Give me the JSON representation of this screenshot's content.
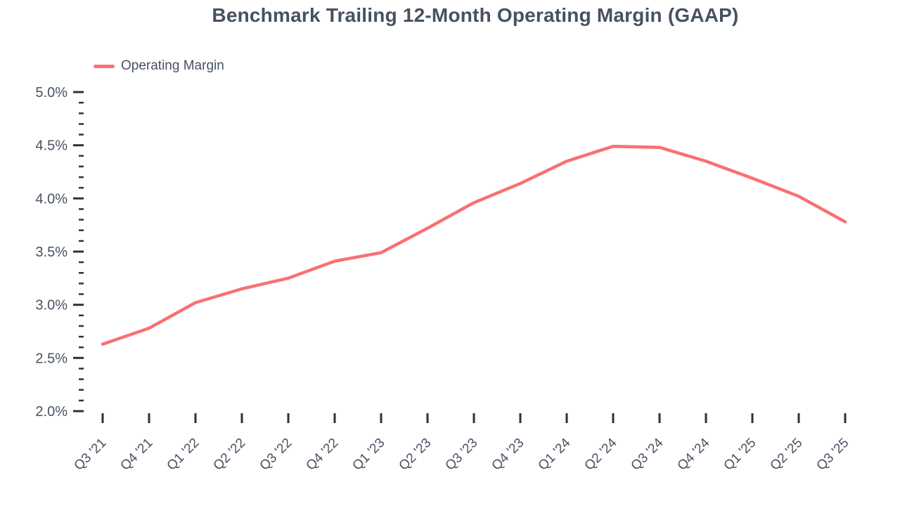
{
  "chart_data": {
    "type": "line",
    "title": "Benchmark Trailing 12-Month Operating Margin (GAAP)",
    "categories": [
      "Q3 '21",
      "Q4 '21",
      "Q1 '22",
      "Q2 '22",
      "Q3 '22",
      "Q4 '22",
      "Q1 '23",
      "Q2 '23",
      "Q3 '23",
      "Q4 '23",
      "Q1 '24",
      "Q2 '24",
      "Q3 '24",
      "Q4 '24",
      "Q1 '25",
      "Q2 '25",
      "Q3 '25"
    ],
    "series": [
      {
        "name": "Operating Margin",
        "color": "#F87171",
        "values": [
          2.63,
          2.78,
          3.02,
          3.15,
          3.25,
          3.41,
          3.49,
          3.72,
          3.96,
          4.14,
          4.35,
          4.49,
          4.48,
          4.35,
          4.19,
          4.02,
          3.78
        ]
      }
    ],
    "xlabel": "",
    "ylabel": "",
    "ylim": [
      2.0,
      5.0
    ],
    "y_major_step": 0.5,
    "y_minor_step": 0.1,
    "y_tick_suffix": "%",
    "y_tick_labels": [
      "2.0%",
      "2.5%",
      "3.0%",
      "3.5%",
      "4.0%",
      "4.5%",
      "5.0%"
    ],
    "grid": false,
    "legend_position": "top-left"
  },
  "colors": {
    "line": "#F87171",
    "text": "#475260",
    "tick": "#2A3140",
    "background": "#FFFFFF"
  }
}
